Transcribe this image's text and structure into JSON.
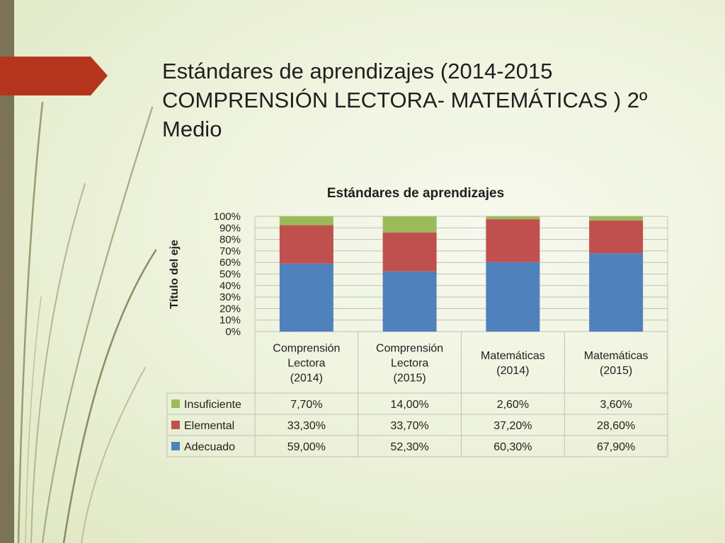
{
  "slide": {
    "title_lines": [
      "Estándares de aprendizajes (2014-2015",
      "COMPRENSIÓN LECTORA- MATEMÁTICAS ) 2º",
      "Medio"
    ]
  },
  "chart_data": {
    "type": "bar",
    "stacked": "percent",
    "title": "Estándares de aprendizajes",
    "xlabel": "",
    "ylabel": "Título del eje",
    "ylim": [
      0,
      100
    ],
    "yticks": [
      "0%",
      "10%",
      "20%",
      "30%",
      "40%",
      "50%",
      "60%",
      "70%",
      "80%",
      "90%",
      "100%"
    ],
    "grid": true,
    "legend": "data-table-left",
    "categories": [
      [
        "Comprensión",
        "Lectora",
        "(2014)"
      ],
      [
        "Comprensión",
        "Lectora",
        "(2015)"
      ],
      [
        "Matemáticas",
        "(2014)"
      ],
      [
        "Matemáticas",
        "(2015)"
      ]
    ],
    "series": [
      {
        "name": "Adecuado",
        "color": "#4f81bd",
        "values": [
          59.0,
          52.3,
          60.3,
          67.9
        ],
        "labels": [
          "59,00%",
          "52,30%",
          "60,30%",
          "67,90%"
        ]
      },
      {
        "name": "Elemental",
        "color": "#c0504d",
        "values": [
          33.3,
          33.7,
          37.2,
          28.6
        ],
        "labels": [
          "33,30%",
          "33,70%",
          "37,20%",
          "28,60%"
        ]
      },
      {
        "name": "Insuficiente",
        "color": "#9bbb59",
        "values": [
          7.7,
          14.0,
          2.6,
          3.6
        ],
        "labels": [
          "7,70%",
          "14,00%",
          "2,60%",
          "3,60%"
        ]
      }
    ],
    "table_row_order": [
      "Insuficiente",
      "Elemental",
      "Adecuado"
    ]
  },
  "theme": {
    "accent": "#b5341e",
    "sidebar": "#7a7355",
    "grid": "#bfbfbf",
    "text": "#1f1f1f"
  }
}
